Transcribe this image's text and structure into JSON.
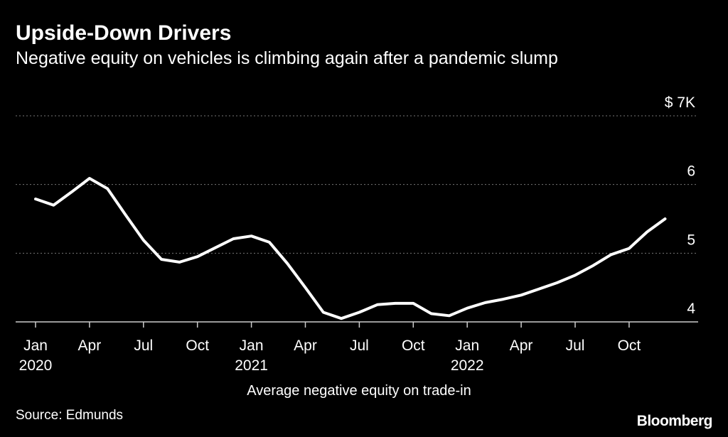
{
  "header": {
    "title": "Upside-Down Drivers",
    "subtitle": "Negative equity on vehicles is climbing again after a pandemic slump"
  },
  "footer": {
    "source": "Source: Edmunds",
    "brand": "Bloomberg"
  },
  "chart_data": {
    "type": "line",
    "title": "Upside-Down Drivers",
    "subtitle": "Negative equity on vehicles is climbing again after a pandemic slump",
    "xlabel": "Average negative equity on trade-in",
    "ylabel": "",
    "ylim": [
      4,
      7
    ],
    "y_ticks": [
      {
        "value": 7,
        "label": "$ 7K"
      },
      {
        "value": 6,
        "label": "6"
      },
      {
        "value": 5,
        "label": "5"
      },
      {
        "value": 4,
        "label": "4"
      }
    ],
    "x_ticks": [
      {
        "index": 0,
        "label": "Jan",
        "year": "2020"
      },
      {
        "index": 3,
        "label": "Apr",
        "year": ""
      },
      {
        "index": 6,
        "label": "Jul",
        "year": ""
      },
      {
        "index": 9,
        "label": "Oct",
        "year": ""
      },
      {
        "index": 12,
        "label": "Jan",
        "year": "2021"
      },
      {
        "index": 15,
        "label": "Apr",
        "year": ""
      },
      {
        "index": 18,
        "label": "Jul",
        "year": ""
      },
      {
        "index": 21,
        "label": "Oct",
        "year": ""
      },
      {
        "index": 24,
        "label": "Jan",
        "year": "2022"
      },
      {
        "index": 27,
        "label": "Apr",
        "year": ""
      },
      {
        "index": 30,
        "label": "Jul",
        "year": ""
      },
      {
        "index": 33,
        "label": "Oct",
        "year": ""
      }
    ],
    "grid": true,
    "series": [
      {
        "name": "Average negative equity on trade-in",
        "color": "#ffffff",
        "x": [
          "Jan 2020",
          "Feb 2020",
          "Mar 2020",
          "Apr 2020",
          "May 2020",
          "Jun 2020",
          "Jul 2020",
          "Aug 2020",
          "Sep 2020",
          "Oct 2020",
          "Nov 2020",
          "Dec 2020",
          "Jan 2021",
          "Feb 2021",
          "Mar 2021",
          "Apr 2021",
          "May 2021",
          "Jun 2021",
          "Jul 2021",
          "Aug 2021",
          "Sep 2021",
          "Oct 2021",
          "Nov 2021",
          "Dec 2021",
          "Jan 2022",
          "Feb 2022",
          "Mar 2022",
          "Apr 2022",
          "May 2022",
          "Jun 2022",
          "Jul 2022",
          "Aug 2022",
          "Sep 2022",
          "Oct 2022",
          "Nov 2022",
          "Dec 2022"
        ],
        "values": [
          5.79,
          5.7,
          5.89,
          6.09,
          5.94,
          5.56,
          5.19,
          4.91,
          4.87,
          4.95,
          5.08,
          5.21,
          5.25,
          5.16,
          4.85,
          4.5,
          4.14,
          4.05,
          4.14,
          4.25,
          4.27,
          4.27,
          4.12,
          4.09,
          4.2,
          4.28,
          4.33,
          4.39,
          4.48,
          4.57,
          4.68,
          4.82,
          4.98,
          5.07,
          5.31,
          5.5
        ]
      }
    ]
  }
}
